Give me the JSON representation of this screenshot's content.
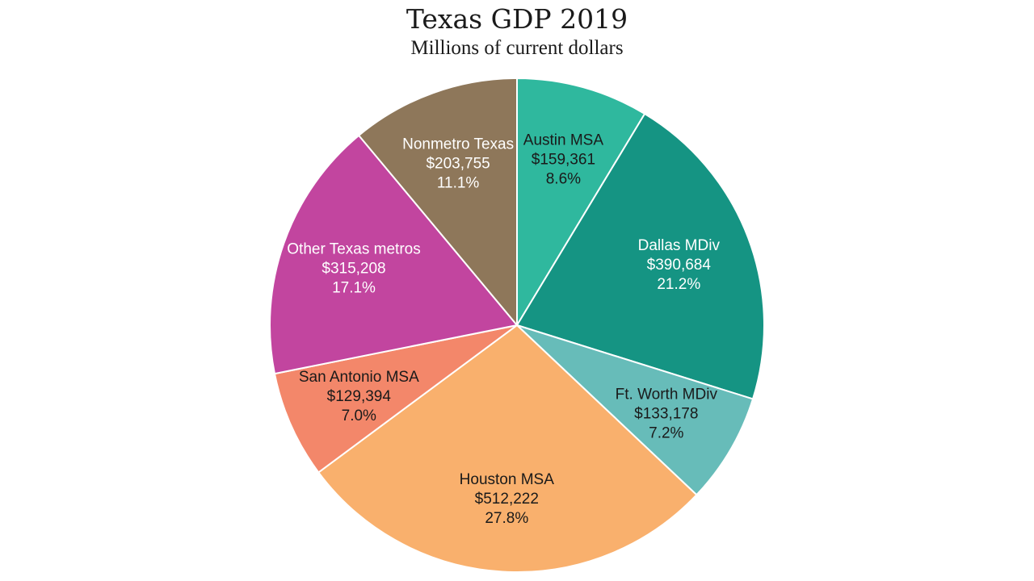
{
  "chart_data": {
    "type": "pie",
    "title": "Texas GDP 2019",
    "subtitle": "Millions of current dollars",
    "slices": [
      {
        "name": "Austin MSA",
        "value_label": "$159,361",
        "pct_label": "8.6%",
        "value": 159361,
        "color": "#2fb89e",
        "text_color": "#1a1a1a"
      },
      {
        "name": "Dallas MDiv",
        "value_label": "$390,684",
        "pct_label": "21.2%",
        "value": 390684,
        "color": "#159483",
        "text_color": "#ffffff"
      },
      {
        "name": "Ft. Worth MDiv",
        "value_label": "$133,178",
        "pct_label": "7.2%",
        "value": 133178,
        "color": "#67bcb9",
        "text_color": "#1a1a1a"
      },
      {
        "name": "Houston MSA",
        "value_label": "$512,222",
        "pct_label": "27.8%",
        "value": 512222,
        "color": "#f9b06d",
        "text_color": "#1a1a1a"
      },
      {
        "name": "San Antonio MSA",
        "value_label": "$129,394",
        "pct_label": "7.0%",
        "value": 129394,
        "color": "#f3876a",
        "text_color": "#1a1a1a"
      },
      {
        "name": "Other Texas metros",
        "value_label": "$315,208",
        "pct_label": "17.1%",
        "value": 315208,
        "color": "#c2459f",
        "text_color": "#ffffff"
      },
      {
        "name": "Nonmetro Texas",
        "value_label": "$203,755",
        "pct_label": "11.1%",
        "value": 203755,
        "color": "#8e775a",
        "text_color": "#ffffff"
      }
    ]
  }
}
